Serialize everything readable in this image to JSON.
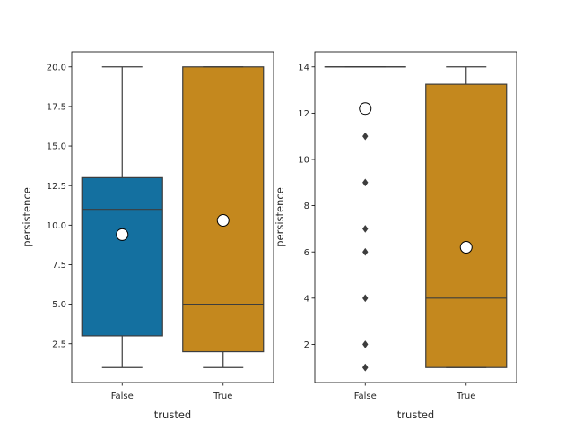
{
  "chart_data": [
    {
      "type": "box",
      "xlabel": "trusted",
      "ylabel": "persistence",
      "categories": [
        "False",
        "True"
      ],
      "ylim": [
        0.05,
        20.95
      ],
      "yticks": [
        2.5,
        5.0,
        7.5,
        10.0,
        12.5,
        15.0,
        17.5,
        20.0
      ],
      "ytick_labels": [
        "2.5",
        "5.0",
        "7.5",
        "10.0",
        "12.5",
        "15.0",
        "17.5",
        "20.0"
      ],
      "boxes": [
        {
          "category": "False",
          "color": "#1470a0",
          "whisker_low": 1.0,
          "q1": 3.0,
          "median": 11.0,
          "q3": 13.0,
          "whisker_high": 20.0,
          "mean": 9.4,
          "outliers": []
        },
        {
          "category": "True",
          "color": "#c4881e",
          "whisker_low": 1.0,
          "q1": 2.0,
          "median": 5.0,
          "q3": 20.0,
          "whisker_high": 20.0,
          "mean": 10.3,
          "outliers": []
        }
      ]
    },
    {
      "type": "box",
      "xlabel": "trusted",
      "ylabel": "persistence",
      "categories": [
        "False",
        "True"
      ],
      "ylim": [
        0.35,
        14.65
      ],
      "yticks": [
        2,
        4,
        6,
        8,
        10,
        12,
        14
      ],
      "ytick_labels": [
        "2",
        "4",
        "6",
        "8",
        "10",
        "12",
        "14"
      ],
      "boxes": [
        {
          "category": "False",
          "color": "#1470a0",
          "whisker_low": 14.0,
          "q1": 14.0,
          "median": 14.0,
          "q3": 14.0,
          "whisker_high": 14.0,
          "mean": 12.2,
          "outliers": [
            1,
            1,
            2,
            4,
            6,
            7,
            9,
            11
          ]
        },
        {
          "category": "True",
          "color": "#c4881e",
          "whisker_low": 1.0,
          "q1": 1.0,
          "median": 4.0,
          "q3": 13.25,
          "whisker_high": 14.0,
          "mean": 6.2,
          "outliers": []
        }
      ]
    }
  ]
}
